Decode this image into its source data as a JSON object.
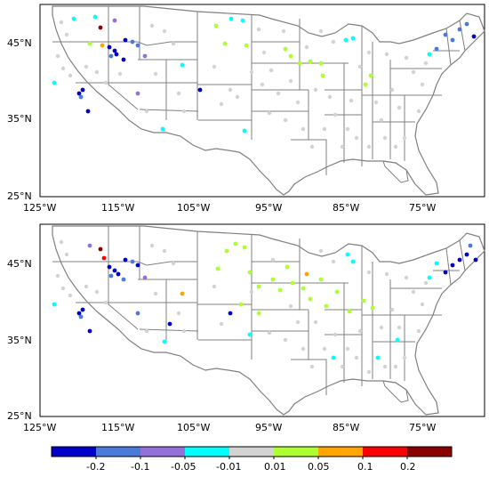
{
  "maps": [
    {
      "id": "top",
      "lon_ticks": [
        "125°W",
        "115°W",
        "105°W",
        "95°W",
        "85°W",
        "75°W"
      ],
      "lat_ticks": [
        "45°N",
        "35°N",
        "25°N"
      ]
    },
    {
      "id": "bottom",
      "lon_ticks": [
        "125°W",
        "115°W",
        "105°W",
        "95°W",
        "85°W",
        "75°W"
      ],
      "lat_ticks": [
        "45°N",
        "35°N",
        "25°N"
      ]
    }
  ],
  "colorbar": {
    "colors": [
      "#0000cd",
      "#4a7bdc",
      "#9370db",
      "#00ffff",
      "#d3d3d3",
      "#adff2f",
      "#ffa500",
      "#ff0000",
      "#8b0000"
    ],
    "tick_labels": [
      "-0.2",
      "-0.1",
      "-0.05",
      "-0.01",
      "0.01",
      "0.05",
      "0.1",
      "0.2"
    ]
  }
}
